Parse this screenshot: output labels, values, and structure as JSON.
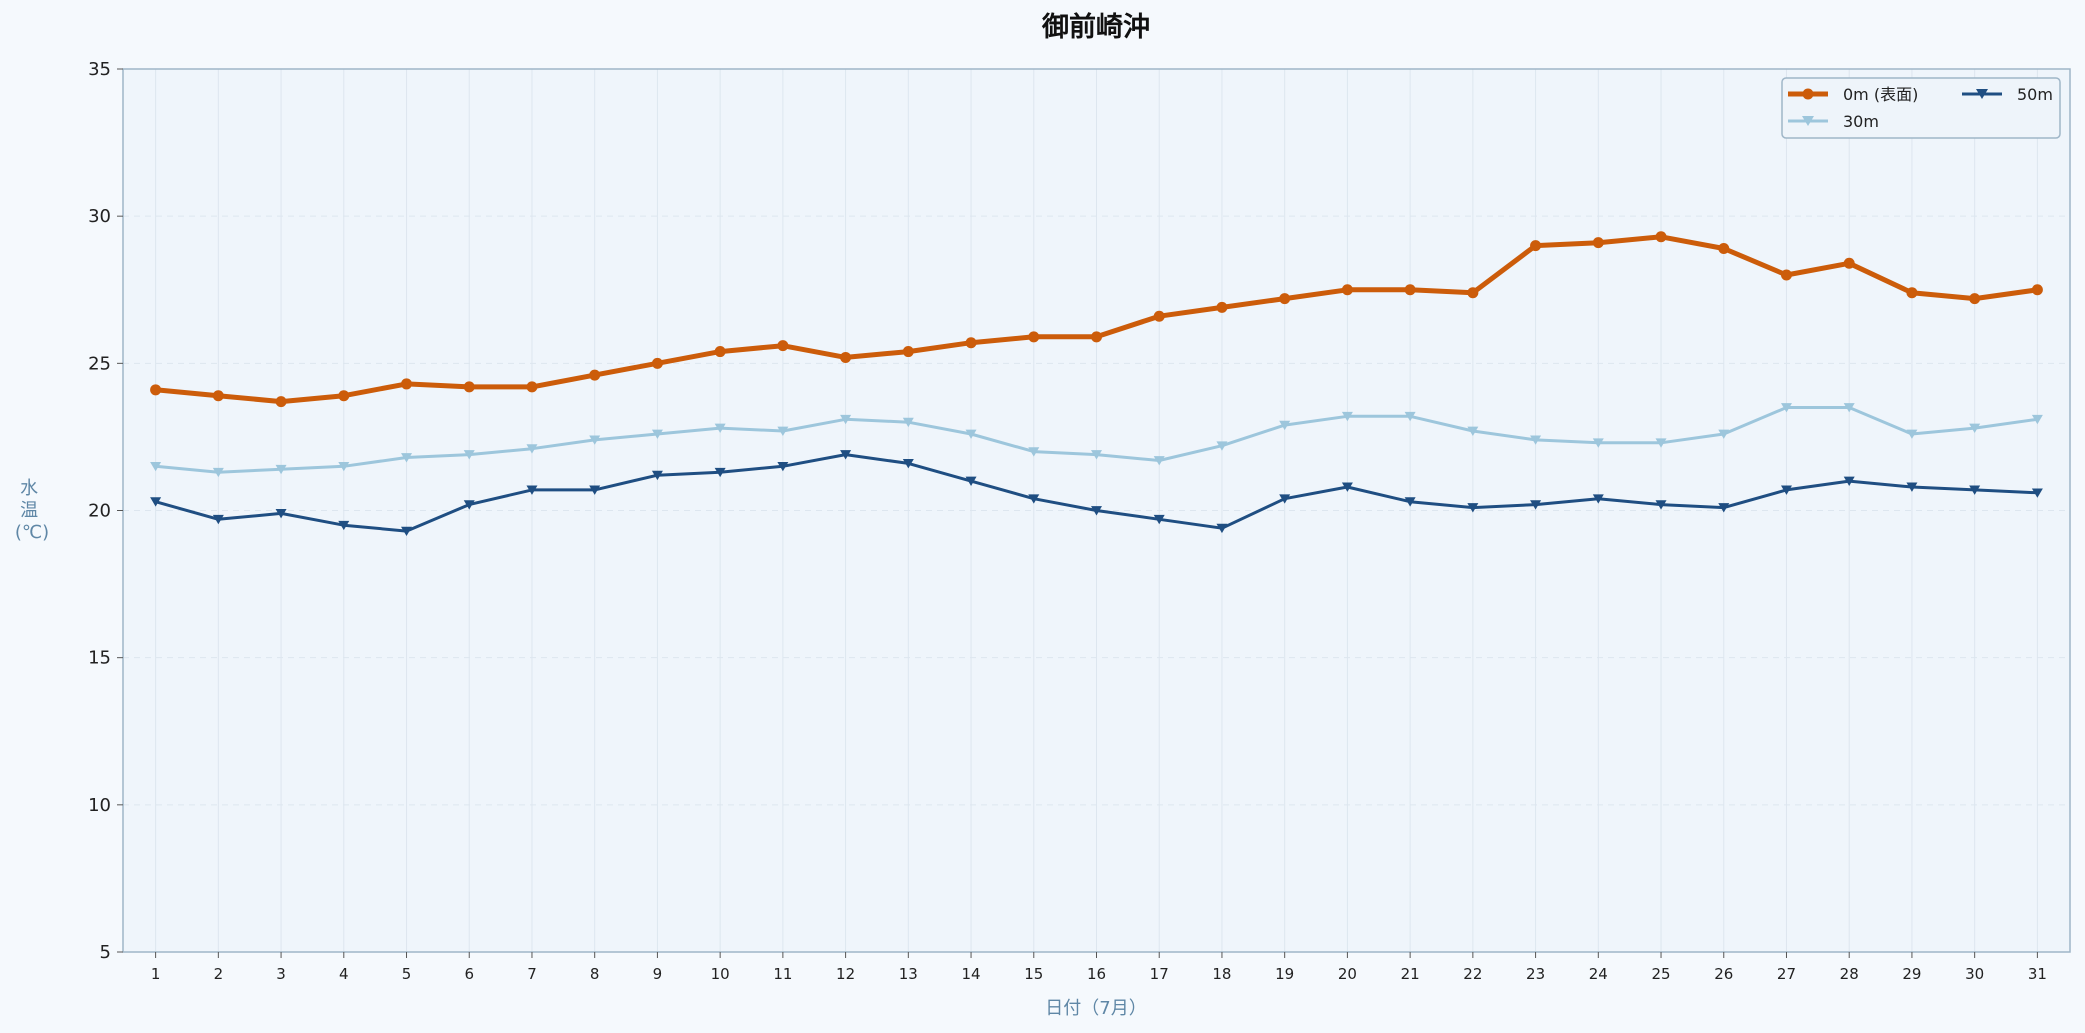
{
  "chart_data": {
    "type": "line",
    "title": "御前崎沖",
    "xlabel": "日付（7月）",
    "ylabel": "水温(℃)",
    "ylabel_lines": [
      "水",
      "温",
      "(℃)"
    ],
    "x": [
      1,
      2,
      3,
      4,
      5,
      6,
      7,
      8,
      9,
      10,
      11,
      12,
      13,
      14,
      15,
      16,
      17,
      18,
      19,
      20,
      21,
      22,
      23,
      24,
      25,
      26,
      27,
      28,
      29,
      30,
      31
    ],
    "xlim": [
      0.48,
      31.52
    ],
    "ylim": [
      5,
      35
    ],
    "yticks": [
      5,
      10,
      15,
      20,
      25,
      30,
      35
    ],
    "grid": true,
    "legend_position": "top-right",
    "series": [
      {
        "name": "0m (表面)",
        "color": "#cc5c0a",
        "marker": "circle",
        "values": [
          24.1,
          23.9,
          23.7,
          23.9,
          24.3,
          24.2,
          24.2,
          24.6,
          25.0,
          25.4,
          25.6,
          25.2,
          25.4,
          25.7,
          25.9,
          25.9,
          26.6,
          26.9,
          27.2,
          27.5,
          27.5,
          27.4,
          29.0,
          29.1,
          29.3,
          28.9,
          28.0,
          28.4,
          27.4,
          27.2,
          27.5
        ]
      },
      {
        "name": "30m",
        "color": "#9dc6dc",
        "marker": "triangle-down",
        "values": [
          21.5,
          21.3,
          21.4,
          21.5,
          21.8,
          21.9,
          22.1,
          22.4,
          22.6,
          22.8,
          22.7,
          23.1,
          23.0,
          22.6,
          22.0,
          21.9,
          21.7,
          22.2,
          22.9,
          23.2,
          23.2,
          22.7,
          22.4,
          22.3,
          22.3,
          22.6,
          23.5,
          23.5,
          22.6,
          22.8,
          23.1
        ]
      },
      {
        "name": "50m",
        "color": "#1f4e82",
        "marker": "triangle-down",
        "values": [
          20.3,
          19.7,
          19.9,
          19.5,
          19.3,
          20.2,
          20.7,
          20.7,
          21.2,
          21.3,
          21.5,
          21.9,
          21.6,
          21.0,
          20.4,
          20.0,
          19.7,
          19.4,
          20.4,
          20.8,
          20.3,
          20.1,
          20.2,
          20.4,
          20.2,
          20.1,
          20.7,
          21.0,
          20.8,
          20.7,
          20.6
        ]
      }
    ]
  },
  "colors": {
    "page_background": "#f5f9fd",
    "plot_background": "#eff5fb",
    "plot_border": "#9fb6c8",
    "grid": "#dde6ef",
    "axis_label": "#5f87a6"
  }
}
